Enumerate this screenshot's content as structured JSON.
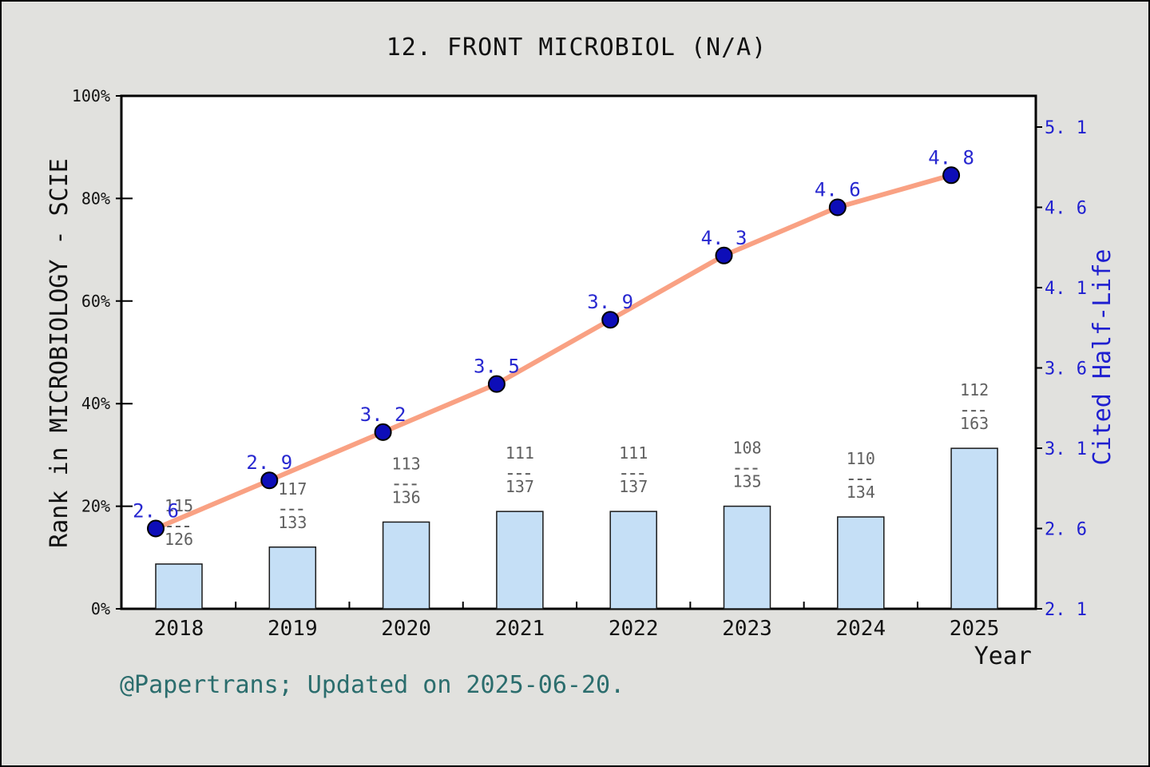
{
  "title": "12. FRONT MICROBIOL (N/A)",
  "footer": "@Papertrans; Updated on 2025-06-20.",
  "colors": {
    "background": "#E1E1DE",
    "plot_background": "#FFFFFF",
    "frame": "#000000",
    "bar_fill": "#C5DFF6",
    "bar_stroke": "#1A1A1A",
    "line": "#F9A183",
    "dot_fill": "#0D0DB8",
    "dot_stroke": "#000000",
    "value_label": "#2828D0",
    "right_axis_text": "#1F1FD0",
    "fraction_text": "#606060",
    "footer_text": "#2B6D6D"
  },
  "chart_data": {
    "type": "combo",
    "title": "12. FRONT MICROBIOL (N/A)",
    "categories": [
      "2018",
      "2019",
      "2020",
      "2021",
      "2022",
      "2023",
      "2024",
      "2025"
    ],
    "x_axis": {
      "label": "Year"
    },
    "left_axis": {
      "label": "Rank in MICROBIOLOGY - SCIE",
      "ticks": [
        "0%",
        "20%",
        "40%",
        "60%",
        "80%",
        "100%"
      ],
      "range": [
        0,
        100
      ]
    },
    "right_axis": {
      "label": "Cited Half-Life",
      "ticks": [
        2.1,
        2.6,
        3.1,
        3.6,
        4.1,
        4.6,
        5.1
      ],
      "range": [
        2.1,
        5.1
      ]
    },
    "series": [
      {
        "name": "Rank in MICROBIOLOGY - SCIE",
        "type": "bar",
        "axis": "left",
        "fractions": [
          {
            "num": 115,
            "den": 126
          },
          {
            "num": 117,
            "den": 133
          },
          {
            "num": 113,
            "den": 136
          },
          {
            "num": 111,
            "den": 137
          },
          {
            "num": 111,
            "den": 137
          },
          {
            "num": 108,
            "den": 135
          },
          {
            "num": 110,
            "den": 134
          },
          {
            "num": 112,
            "den": 163
          }
        ],
        "values_percent": [
          8.7,
          12.0,
          16.9,
          19.0,
          19.0,
          20.0,
          17.9,
          31.3
        ]
      },
      {
        "name": "Cited Half-Life",
        "type": "line",
        "axis": "right",
        "values": [
          2.6,
          2.9,
          3.2,
          3.5,
          3.9,
          4.3,
          4.6,
          4.8
        ]
      }
    ],
    "grid": false,
    "legend": "none"
  }
}
